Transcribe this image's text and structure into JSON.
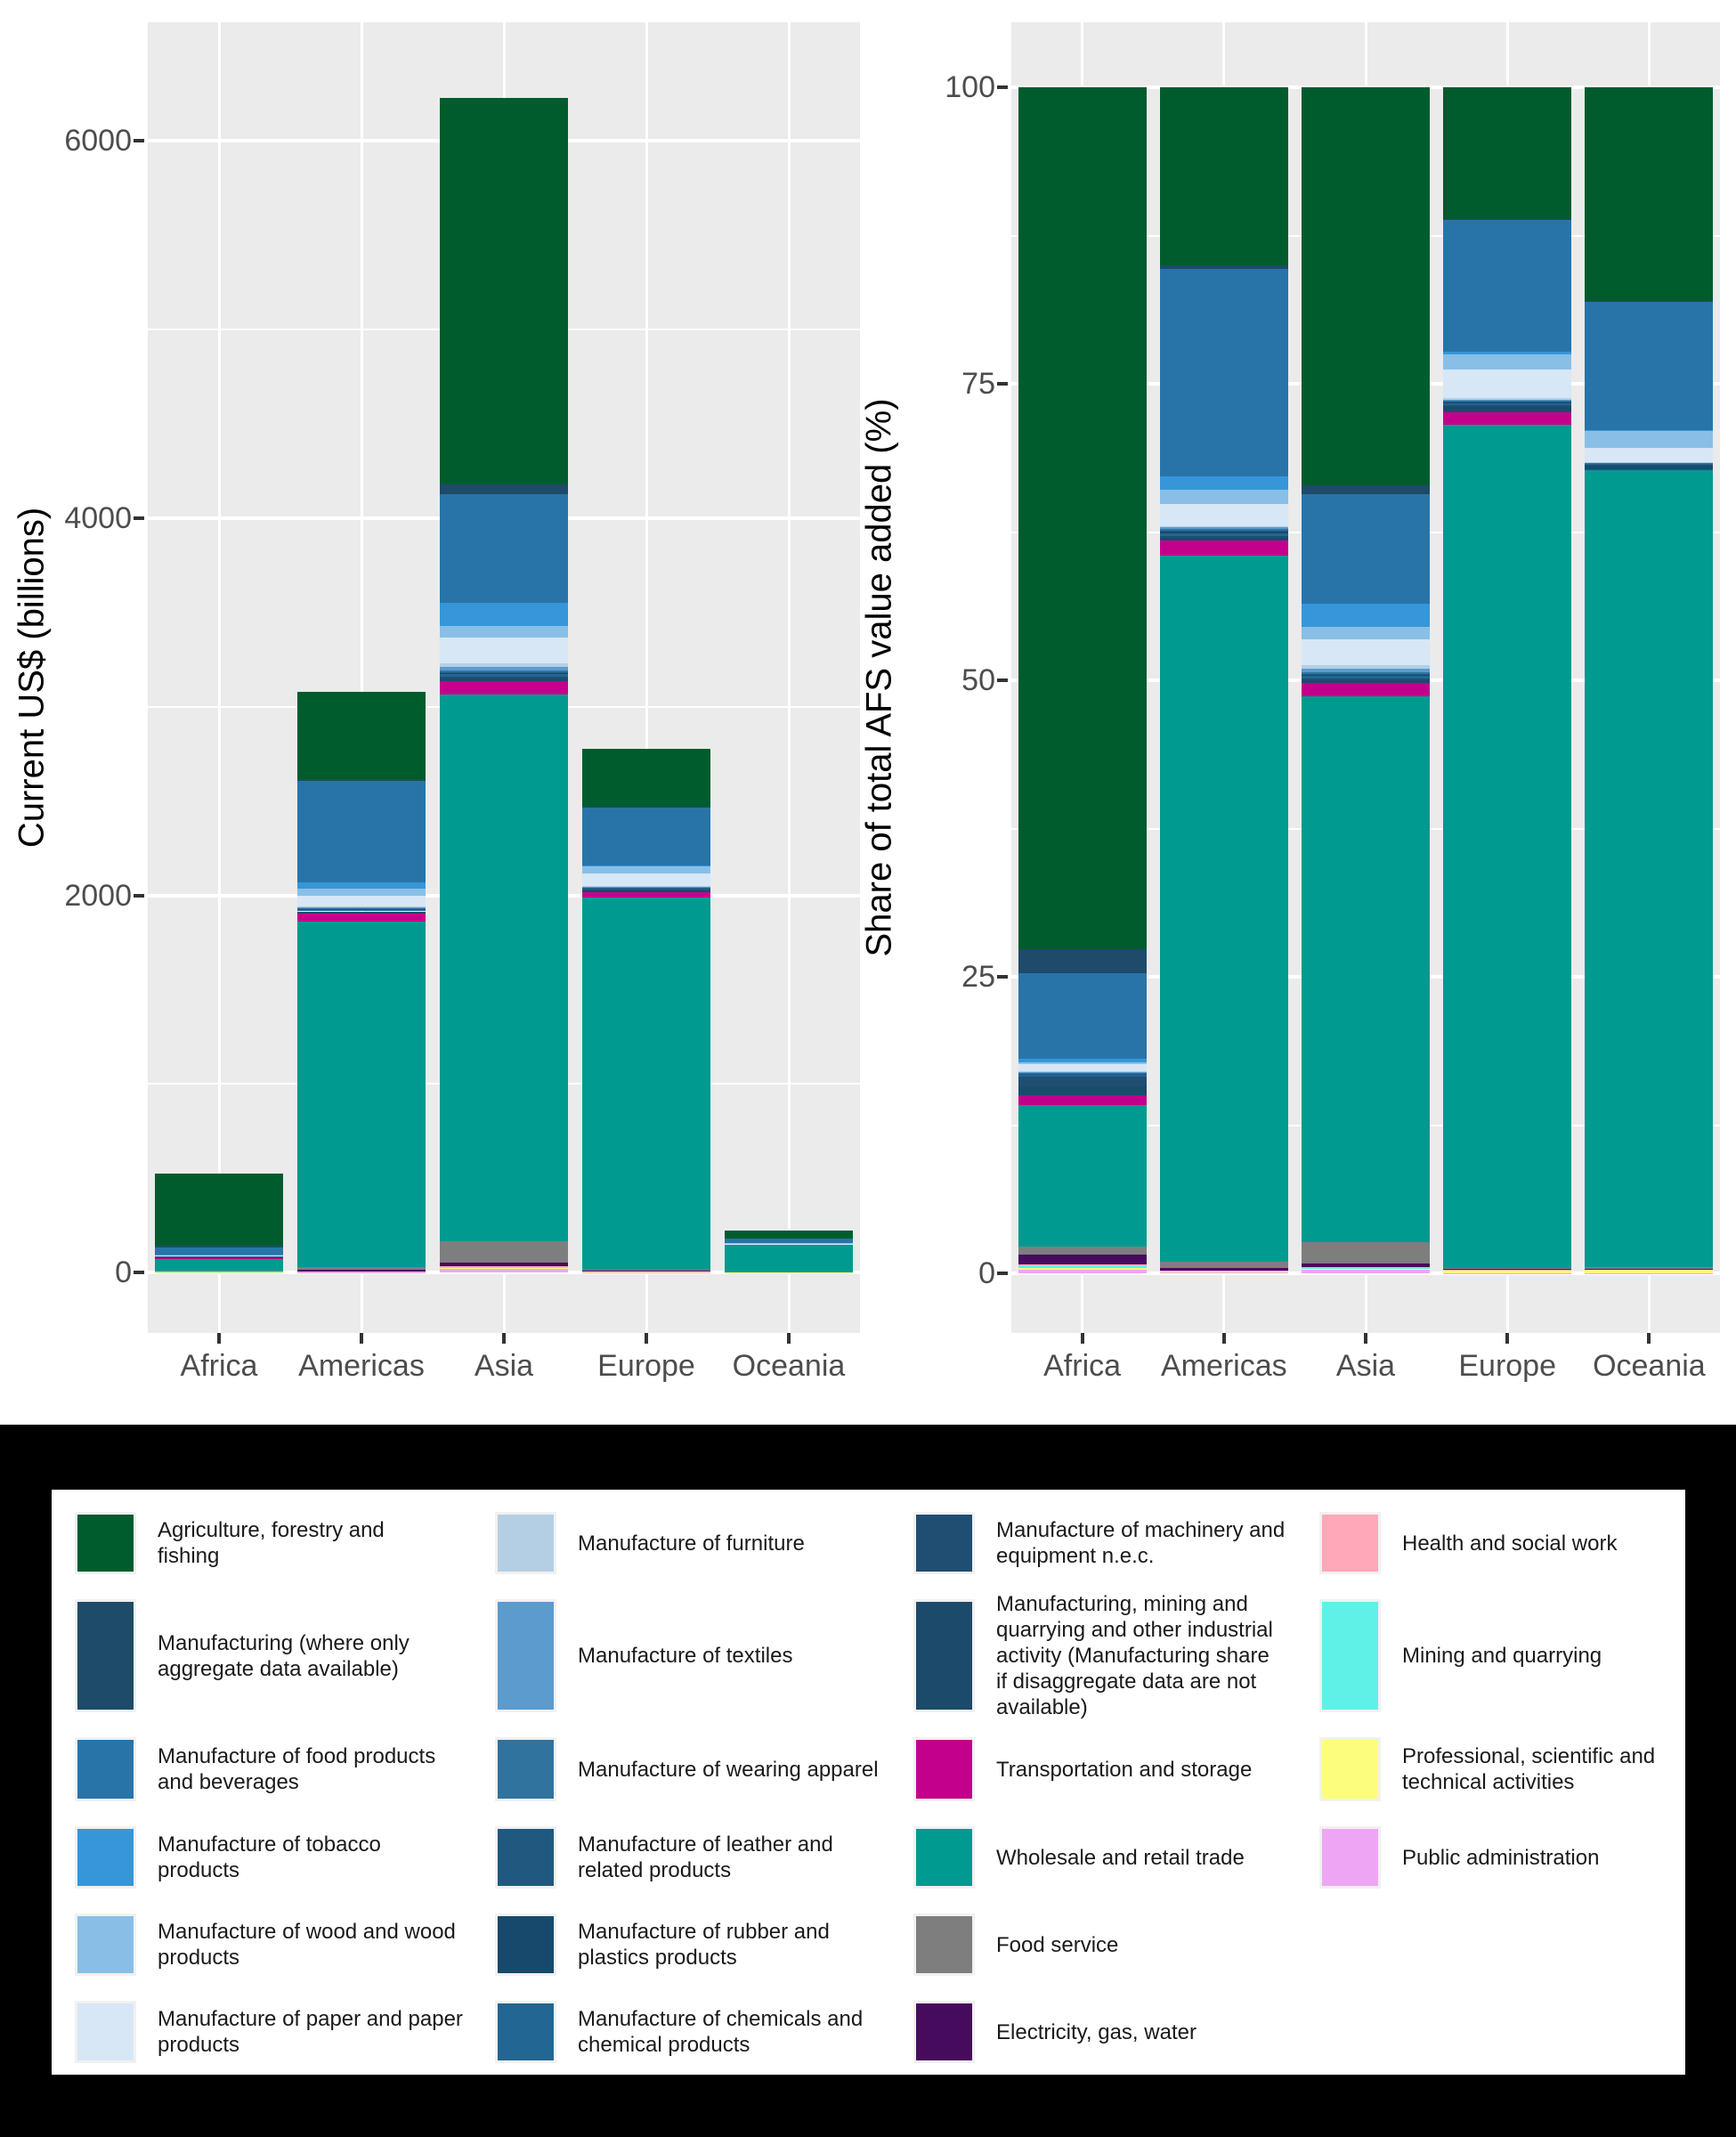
{
  "figure": {
    "background": "#FFFFFF",
    "panel_background": "#EBEBEB",
    "grid_color": "#FFFFFF",
    "axis_text_color": "#4D4D4D",
    "axis_title_color": "#000000",
    "legend_band_background": "#000000",
    "legend_box_background": "#FFFFFF"
  },
  "left_chart": {
    "ylabel": "Current US$ (billions)",
    "yticks": [
      0,
      2000,
      4000,
      6000
    ]
  },
  "right_chart": {
    "ylabel": "Share of total AFS value added (%)",
    "yticks": [
      0,
      25,
      50,
      75,
      100
    ]
  },
  "chart_data": [
    {
      "type": "bar",
      "stacked": true,
      "title": "",
      "xlabel": "",
      "ylabel": "Current US$ (billions)",
      "categories": [
        "Africa",
        "Americas",
        "Asia",
        "Europe",
        "Oceania"
      ],
      "ylim": [
        -320,
        6630
      ],
      "yticks": [
        0,
        2000,
        4000,
        6000
      ],
      "yticks_minor": [
        1000,
        3000,
        5000
      ],
      "grid": true,
      "legend_position": "bottom",
      "value_field": "values_billions"
    },
    {
      "type": "bar",
      "stacked": true,
      "title": "",
      "xlabel": "",
      "ylabel": "Share of total AFS value added (%)",
      "categories": [
        "Africa",
        "Americas",
        "Asia",
        "Europe",
        "Oceania"
      ],
      "ylim": [
        -5,
        105.5
      ],
      "yticks": [
        0,
        25,
        50,
        75,
        100
      ],
      "yticks_minor": [
        12.5,
        37.5,
        62.5,
        87.5
      ],
      "grid": true,
      "legend_position": "bottom",
      "value_field": "values_pct"
    }
  ],
  "series": [
    {
      "name": "Agriculture, forestry and fishing",
      "color": "#005C2D",
      "values_billions": [
        381,
        462,
        2050,
        308,
        40
      ],
      "values_pct": [
        72.7,
        15.0,
        33.5,
        11.1,
        18.0
      ]
    },
    {
      "name": "Manufacturing (where only aggregate data available)",
      "color": "#1D4B69",
      "values_billions": [
        10.5,
        9,
        52,
        3,
        0.1
      ],
      "values_pct": [
        2.0,
        0.3,
        0.8,
        0.1,
        0.05
      ]
    },
    {
      "name": "Manufacture of food products and beverages",
      "color": "#2874A9",
      "values_billions": [
        38,
        539,
        576,
        308,
        24
      ],
      "values_pct": [
        7.2,
        17.5,
        9.2,
        11.1,
        10.8
      ]
    },
    {
      "name": "Manufacture of tobacco products",
      "color": "#3696D8",
      "values_billions": [
        1.6,
        34,
        122,
        6,
        0.2
      ],
      "values_pct": [
        0.3,
        1.1,
        2.0,
        0.2,
        0.1
      ]
    },
    {
      "name": "Manufacture of wood and wood products",
      "color": "#89BFE6",
      "values_billions": [
        1.0,
        37,
        62,
        36,
        3.1
      ],
      "values_pct": [
        0.2,
        1.2,
        1.0,
        1.3,
        1.4
      ]
    },
    {
      "name": "Manufacture of paper and paper products",
      "color": "#D7E7F6",
      "values_billions": [
        3.1,
        59,
        137,
        67,
        2.6
      ],
      "values_pct": [
        0.6,
        1.9,
        2.2,
        2.4,
        1.2
      ]
    },
    {
      "name": "Manufacture of furniture",
      "color": "#B4CFE4",
      "values_billions": [
        0.1,
        3,
        19,
        3,
        0.1
      ],
      "values_pct": [
        0.02,
        0.1,
        0.3,
        0.1,
        0.05
      ]
    },
    {
      "name": "Manufacture of textiles",
      "color": "#5B9BCE",
      "values_billions": [
        0.5,
        5,
        18,
        3,
        0.1
      ],
      "values_pct": [
        0.1,
        0.15,
        0.3,
        0.1,
        0.05
      ]
    },
    {
      "name": "Manufacture of wearing apparel",
      "color": "#30739F",
      "values_billions": [
        0.5,
        3,
        8,
        1.4,
        0.05
      ],
      "values_pct": [
        0.1,
        0.1,
        0.13,
        0.05,
        0.02
      ]
    },
    {
      "name": "Manufacture of leather and related products",
      "color": "#20597F",
      "values_billions": [
        0.1,
        1.5,
        4,
        1.4,
        0.05
      ],
      "values_pct": [
        0.02,
        0.05,
        0.06,
        0.05,
        0.02
      ]
    },
    {
      "name": "Manufacture of rubber and plastics products",
      "color": "#16496B",
      "values_billions": [
        0.3,
        6,
        8,
        3,
        0.1
      ],
      "values_pct": [
        0.05,
        0.2,
        0.13,
        0.1,
        0.05
      ]
    },
    {
      "name": "Manufacture of chemicals and chemical products",
      "color": "#226693",
      "values_billions": [
        0.8,
        6,
        12,
        6,
        0.2
      ],
      "values_pct": [
        0.15,
        0.2,
        0.19,
        0.2,
        0.1
      ]
    },
    {
      "name": "Manufacture of machinery and equipment n.e.c.",
      "color": "#204E73",
      "values_billions": [
        4.2,
        6,
        8,
        3,
        0.1
      ],
      "values_pct": [
        0.8,
        0.2,
        0.13,
        0.1,
        0.05
      ]
    },
    {
      "name": "Manufacturing, mining and quarrying and other industrial activity (Manufacturing share if disaggregate data are not available)",
      "color": "#1C4A6B",
      "values_billions": [
        4.2,
        6,
        15,
        14,
        0.7
      ],
      "values_pct": [
        0.8,
        0.2,
        0.25,
        0.5,
        0.3
      ]
    },
    {
      "name": "Transportation and storage",
      "color": "#C3008B",
      "values_billions": [
        4.2,
        40,
        71,
        28,
        0.2
      ],
      "values_pct": [
        0.8,
        1.3,
        1.15,
        1.0,
        0.1
      ]
    },
    {
      "name": "Wholesale and retail trade",
      "color": "#009A90",
      "values_billions": [
        62,
        1833,
        2900,
        1973,
        148
      ],
      "values_pct": [
        11.9,
        59.5,
        46.0,
        71.1,
        67.17
      ]
    },
    {
      "name": "Food service",
      "color": "#7E7E7E",
      "values_billions": [
        3.7,
        15,
        113,
        3,
        0.2
      ],
      "values_pct": [
        0.7,
        0.5,
        1.8,
        0.1,
        0.1
      ]
    },
    {
      "name": "Electricity, gas, water",
      "color": "#470B5E",
      "values_billions": [
        4.2,
        8,
        19,
        1.4,
        0.1
      ],
      "values_pct": [
        0.8,
        0.25,
        0.3,
        0.05,
        0.05
      ]
    },
    {
      "name": "Health and social work",
      "color": "#FFA8BA",
      "values_billions": [
        0.3,
        0.6,
        2,
        0.6,
        0.02
      ],
      "values_pct": [
        0.05,
        0.02,
        0.03,
        0.02,
        0.01
      ]
    },
    {
      "name": "Mining and quarrying",
      "color": "#5FF1E7",
      "values_billions": [
        1.6,
        1.5,
        9,
        0.8,
        0.1
      ],
      "values_pct": [
        0.3,
        0.05,
        0.15,
        0.03,
        0.05
      ]
    },
    {
      "name": "Professional, scientific and technical activities",
      "color": "#FCFC7D",
      "values_billions": [
        0.5,
        2.5,
        4,
        7,
        0.7
      ],
      "values_pct": [
        0.1,
        0.08,
        0.06,
        0.25,
        0.3
      ]
    },
    {
      "name": "Public administration",
      "color": "#EEA6F4",
      "values_billions": [
        1.9,
        3,
        19,
        1.4,
        0.07
      ],
      "values_pct": [
        0.36,
        0.1,
        0.32,
        0.05,
        0.03
      ]
    }
  ],
  "legend": {
    "columns": [
      [
        {
          "label": "Agriculture, forestry and\nfishing",
          "color": "#005C2D"
        },
        {
          "label": "Manufacturing (where only\naggregate data available)",
          "color": "#1D4B69"
        },
        {
          "label": "Manufacture of food products\nand beverages",
          "color": "#2874A9"
        },
        {
          "label": "Manufacture of tobacco\nproducts",
          "color": "#3696D8"
        },
        {
          "label": "Manufacture of wood and wood\nproducts",
          "color": "#89BFE6"
        },
        {
          "label": "Manufacture of paper and paper\nproducts",
          "color": "#D7E7F6"
        }
      ],
      [
        {
          "label": "Manufacture of furniture",
          "color": "#B4CFE4"
        },
        {
          "label": "Manufacture of textiles",
          "color": "#5B9BCE"
        },
        {
          "label": "Manufacture of wearing apparel",
          "color": "#30739F"
        },
        {
          "label": "Manufacture of leather and\nrelated products",
          "color": "#20597F"
        },
        {
          "label": "Manufacture of rubber and\nplastics products",
          "color": "#16496B"
        },
        {
          "label": "Manufacture of chemicals and\nchemical products",
          "color": "#226693"
        }
      ],
      [
        {
          "label": "Manufacture of machinery and\nequipment n.e.c.",
          "color": "#204E73"
        },
        {
          "label": "Manufacturing, mining and\nquarrying and other industrial\nactivity (Manufacturing share\nif disaggregate data are not\navailable)",
          "color": "#1C4A6B"
        },
        {
          "label": "Transportation and storage",
          "color": "#C3008B"
        },
        {
          "label": "Wholesale and retail trade",
          "color": "#009A90"
        },
        {
          "label": "Food service",
          "color": "#7E7E7E"
        },
        {
          "label": "Electricity, gas, water",
          "color": "#470B5E"
        }
      ],
      [
        {
          "label": "Health and social work",
          "color": "#FFA8BA"
        },
        {
          "label": "Mining and quarrying",
          "color": "#5FF1E7"
        },
        {
          "label": "Professional, scientific and\ntechnical activities",
          "color": "#FCFC7D"
        },
        {
          "label": "Public administration",
          "color": "#EEA6F4"
        }
      ]
    ]
  }
}
